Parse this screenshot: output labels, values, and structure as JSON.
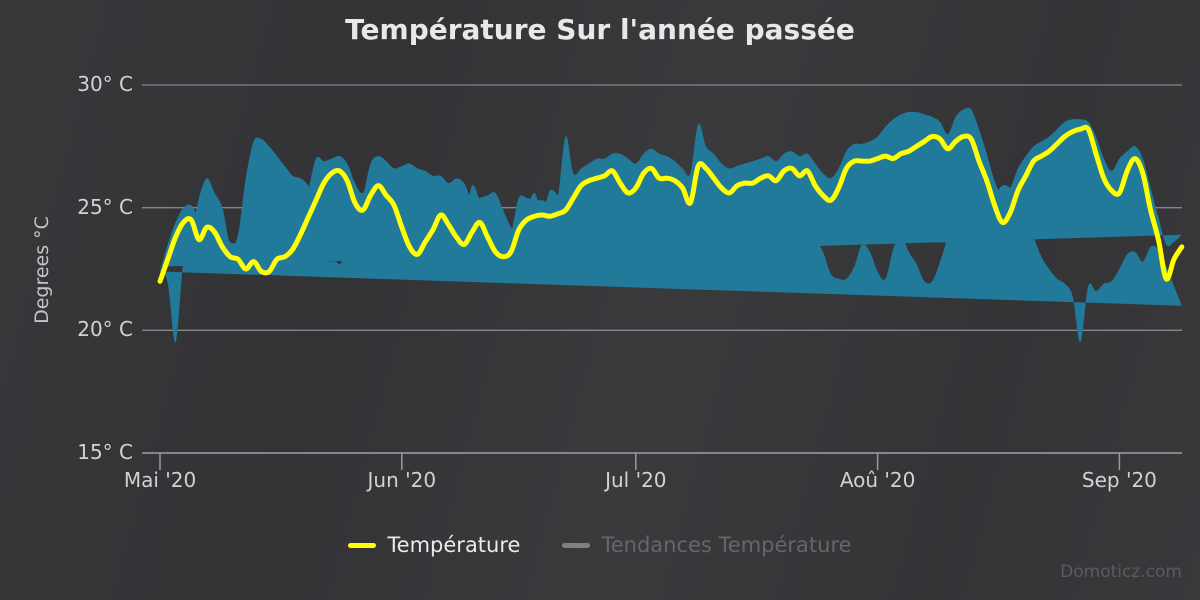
{
  "title": "Température Sur l'année passée",
  "watermark": "Domoticz.com",
  "y_axis": {
    "title": "Degrees °C",
    "ticks": [
      {
        "label": "30° C",
        "value": 30
      },
      {
        "label": "25° C",
        "value": 25
      },
      {
        "label": "20° C",
        "value": 20
      },
      {
        "label": "15° C",
        "value": 15
      }
    ]
  },
  "x_axis": {
    "ticks": [
      {
        "label": "Mai '20",
        "day": 0
      },
      {
        "label": "Jun '20",
        "day": 31
      },
      {
        "label": "Jul '20",
        "day": 61
      },
      {
        "label": "Aoû '20",
        "day": 92
      },
      {
        "label": "Sep '20",
        "day": 123
      }
    ]
  },
  "legend": {
    "items": [
      {
        "label": "Température",
        "color": "#ffff00",
        "enabled": true
      },
      {
        "label": "Tendances Température",
        "color": "#808080",
        "enabled": false
      }
    ]
  },
  "colors": {
    "band": "#217a99",
    "line": "#ffff00",
    "grid": "rgba(200,200,205,0.55)",
    "axis": "#9a9a9e",
    "title": "#e8e8e8",
    "watermark": "#5b5b5f"
  },
  "chart_data": {
    "type": "line",
    "title": "Température Sur l'année passée",
    "xlabel": "",
    "ylabel": "Degrees °C",
    "ylim": [
      15,
      30
    ],
    "grid": true,
    "legend_position": "bottom",
    "x_unit": "day",
    "x_tick_labels": [
      "Mai '20",
      "Jun '20",
      "Jul '20",
      "Aoû '20",
      "Sep '20"
    ],
    "x_tick_days": [
      0,
      31,
      61,
      92,
      123
    ],
    "n_points": 132,
    "series": [
      {
        "name": "Température",
        "type": "spline",
        "color": "#ffff00",
        "visible": true,
        "values": [
          22.0,
          22.9,
          23.8,
          24.4,
          24.5,
          23.7,
          24.2,
          24.0,
          23.4,
          23.0,
          22.9,
          22.5,
          22.8,
          22.4,
          22.4,
          22.9,
          23.0,
          23.3,
          23.9,
          24.6,
          25.3,
          26.0,
          26.4,
          26.5,
          26.1,
          25.2,
          24.9,
          25.5,
          25.9,
          25.5,
          25.1,
          24.2,
          23.4,
          23.1,
          23.6,
          24.1,
          24.7,
          24.3,
          23.8,
          23.5,
          24.0,
          24.4,
          23.8,
          23.2,
          23.0,
          23.2,
          24.1,
          24.5,
          24.65,
          24.7,
          24.65,
          24.75,
          24.9,
          25.4,
          25.9,
          26.1,
          26.2,
          26.3,
          26.5,
          26.0,
          25.6,
          25.8,
          26.4,
          26.6,
          26.2,
          26.2,
          26.1,
          25.8,
          25.2,
          26.7,
          26.6,
          26.2,
          25.8,
          25.6,
          25.9,
          26.0,
          26.0,
          26.2,
          26.3,
          26.1,
          26.5,
          26.6,
          26.3,
          26.5,
          25.9,
          25.5,
          25.3,
          25.8,
          26.6,
          26.9,
          26.9,
          26.9,
          27.0,
          27.1,
          27.0,
          27.2,
          27.3,
          27.5,
          27.7,
          27.9,
          27.8,
          27.4,
          27.7,
          27.9,
          27.8,
          26.9,
          26.1,
          25.1,
          24.4,
          24.8,
          25.7,
          26.3,
          26.9,
          27.1,
          27.3,
          27.6,
          27.9,
          28.1,
          28.2,
          28.2,
          27.2,
          26.2,
          25.7,
          25.6,
          26.5,
          27.0,
          26.4,
          24.9,
          23.7,
          22.1,
          22.9,
          23.4
        ]
      },
      {
        "name": "Température range min",
        "type": "arearange_low",
        "color": "#217a99",
        "visible": true,
        "values": [
          21.0,
          21.8,
          22.6,
          23.3,
          23.4,
          22.8,
          23.2,
          23.1,
          22.5,
          22.0,
          21.9,
          21.6,
          21.8,
          19.5,
          21.4,
          21.9,
          22.1,
          22.5,
          23.0,
          23.8,
          24.5,
          25.3,
          25.8,
          25.9,
          25.4,
          24.3,
          24.1,
          24.7,
          25.1,
          24.6,
          23.8,
          22.8,
          22.0,
          22.0,
          22.7,
          23.2,
          23.9,
          23.3,
          22.1,
          22.4,
          23.2,
          23.5,
          22.6,
          22.1,
          22.1,
          22.3,
          23.2,
          23.7,
          23.9,
          24.1,
          23.9,
          24.2,
          24.5,
          24.9,
          25.3,
          25.5,
          25.6,
          25.7,
          26.0,
          25.0,
          24.0,
          24.6,
          25.6,
          25.8,
          25.0,
          24.2,
          24.6,
          24.1,
          23.9,
          26.0,
          25.6,
          25.1,
          24.4,
          23.8,
          24.9,
          25.1,
          25.0,
          23.7,
          25.3,
          25.1,
          25.5,
          25.7,
          24.8,
          25.6,
          24.9,
          23.9,
          24.2,
          24.9,
          25.6,
          25.5,
          25.4,
          25.3,
          26.0,
          26.2,
          26.0,
          26.3,
          26.3,
          26.5,
          26.6,
          26.8,
          26.7,
          26.6,
          26.9,
          27.1,
          26.8,
          25.4,
          24.3,
          23.3,
          22.7,
          23.3,
          24.4,
          25.2,
          25.9,
          26.2,
          26.3,
          26.7,
          27.1,
          27.5,
          27.8,
          27.7,
          26.2,
          23.9,
          23.5,
          25.0,
          25.6,
          26.2,
          25.4,
          23.9,
          22.8,
          19.5,
          21.9,
          22.6
        ]
      },
      {
        "name": "Température range max",
        "type": "arearange_high",
        "color": "#217a99",
        "visible": true,
        "values": [
          22.4,
          23.5,
          24.4,
          25.0,
          25.1,
          24.6,
          24.9,
          24.8,
          24.1,
          23.6,
          23.5,
          23.2,
          23.4,
          23.1,
          23.2,
          23.6,
          23.7,
          24.0,
          24.6,
          25.7,
          27.0,
          26.9,
          27.0,
          27.1,
          26.8,
          26.0,
          25.6,
          26.4,
          26.5,
          26.3,
          26.0,
          24.9,
          24.5,
          24.2,
          26.0,
          25.4,
          25.7,
          25.1,
          24.6,
          24.4,
          25.9,
          25.3,
          24.6,
          24.0,
          23.9,
          24.0,
          25.4,
          25.4,
          25.3,
          25.3,
          25.2,
          25.4,
          27.9,
          26.4,
          26.6,
          26.8,
          27.0,
          27.0,
          27.2,
          27.2,
          27.0,
          26.8,
          27.2,
          27.4,
          27.2,
          27.1,
          26.9,
          26.6,
          26.4,
          28.4,
          27.5,
          27.2,
          26.8,
          26.6,
          26.7,
          26.8,
          26.9,
          27.0,
          27.1,
          26.9,
          27.2,
          27.3,
          27.1,
          27.2,
          26.8,
          26.4,
          26.2,
          26.6,
          27.3,
          27.6,
          27.6,
          27.7,
          27.9,
          28.3,
          28.6,
          28.8,
          28.9,
          28.9,
          28.8,
          28.7,
          28.5,
          28.0,
          28.7,
          29.0,
          29.0,
          28.2,
          27.2,
          26.1,
          25.5,
          25.8,
          26.6,
          27.1,
          27.5,
          27.7,
          27.9,
          28.2,
          28.5,
          28.6,
          28.6,
          28.5,
          27.9,
          27.0,
          26.5,
          27.0,
          27.3,
          27.5,
          27.0,
          25.8,
          24.6,
          23.5,
          23.6,
          23.9
        ]
      },
      {
        "name": "Tendances Température",
        "type": "spline",
        "color": "#808080",
        "visible": false,
        "values": []
      }
    ]
  }
}
